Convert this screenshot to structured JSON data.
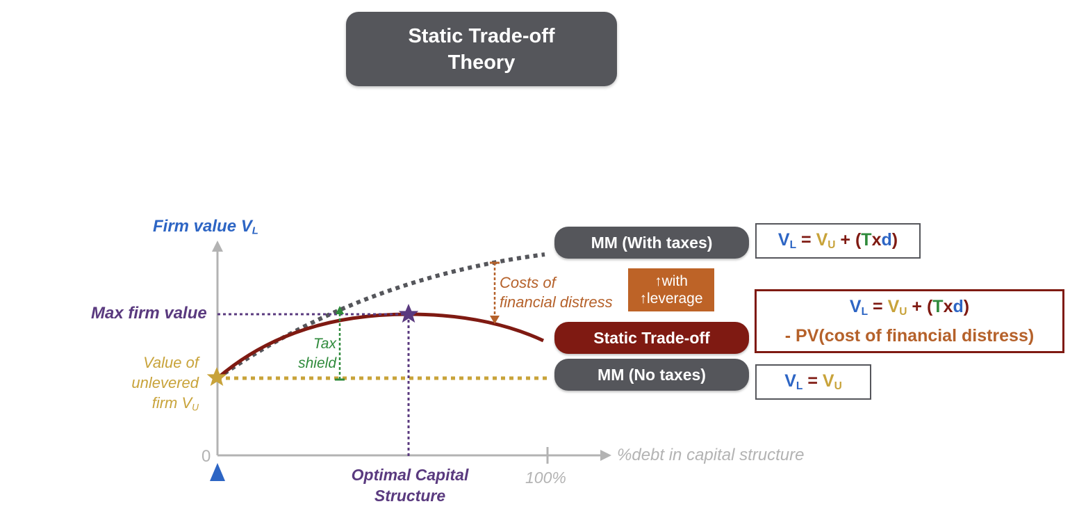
{
  "title": {
    "line1": "Static Trade-off",
    "line2": "Theory"
  },
  "axes": {
    "y_label": "Firm value V",
    "y_label_sub": "L",
    "x_label": "%debt in capital structure",
    "origin_label": "0",
    "x_max_label": "100%"
  },
  "labels": {
    "max_firm_value": "Max firm value",
    "unlevered_line1": "Value of",
    "unlevered_line2": "unlevered",
    "unlevered_line3": "firm V",
    "unlevered_sub": "U",
    "tax_shield_line1": "Tax",
    "tax_shield_line2": "shield",
    "distress_line1": "Costs of",
    "distress_line2": "financial distress",
    "optimal_line1": "Optimal Capital",
    "optimal_line2": "Structure"
  },
  "leverage_box": {
    "line1": "↑with",
    "line2": "↑leverage"
  },
  "pills": {
    "mm_with_taxes": "MM (With taxes)",
    "static_tradeoff": "Static Trade-off",
    "mm_no_taxes": "MM (No taxes)"
  },
  "formulas": {
    "with_taxes": {
      "vl": "V",
      "vl_sub": "L",
      "eq": " = ",
      "vu": "V",
      "vu_sub": "U",
      "plus": " + ",
      "open": "(",
      "t": "T",
      "x": "x",
      "d": "d",
      "close": ")"
    },
    "static": {
      "vl": "V",
      "vl_sub": "L",
      "eq": " = ",
      "vu": "V",
      "vu_sub": "U",
      "plus": " + ",
      "open": "(",
      "t": "T",
      "x": "x",
      "d": "d",
      "close": ")",
      "line2": "- PV(cost of financial distress)"
    },
    "no_taxes": {
      "vl": "V",
      "vl_sub": "L",
      "eq": " = ",
      "vu": "V",
      "vu_sub": "U"
    }
  },
  "colors": {
    "blue": "#2d65c4",
    "gold": "#c8a33a",
    "dark_red": "#7f1a12",
    "green": "#2f8a3b",
    "orange": "#b5612a",
    "purple": "#5a3a7f",
    "gray": "#55565b"
  }
}
